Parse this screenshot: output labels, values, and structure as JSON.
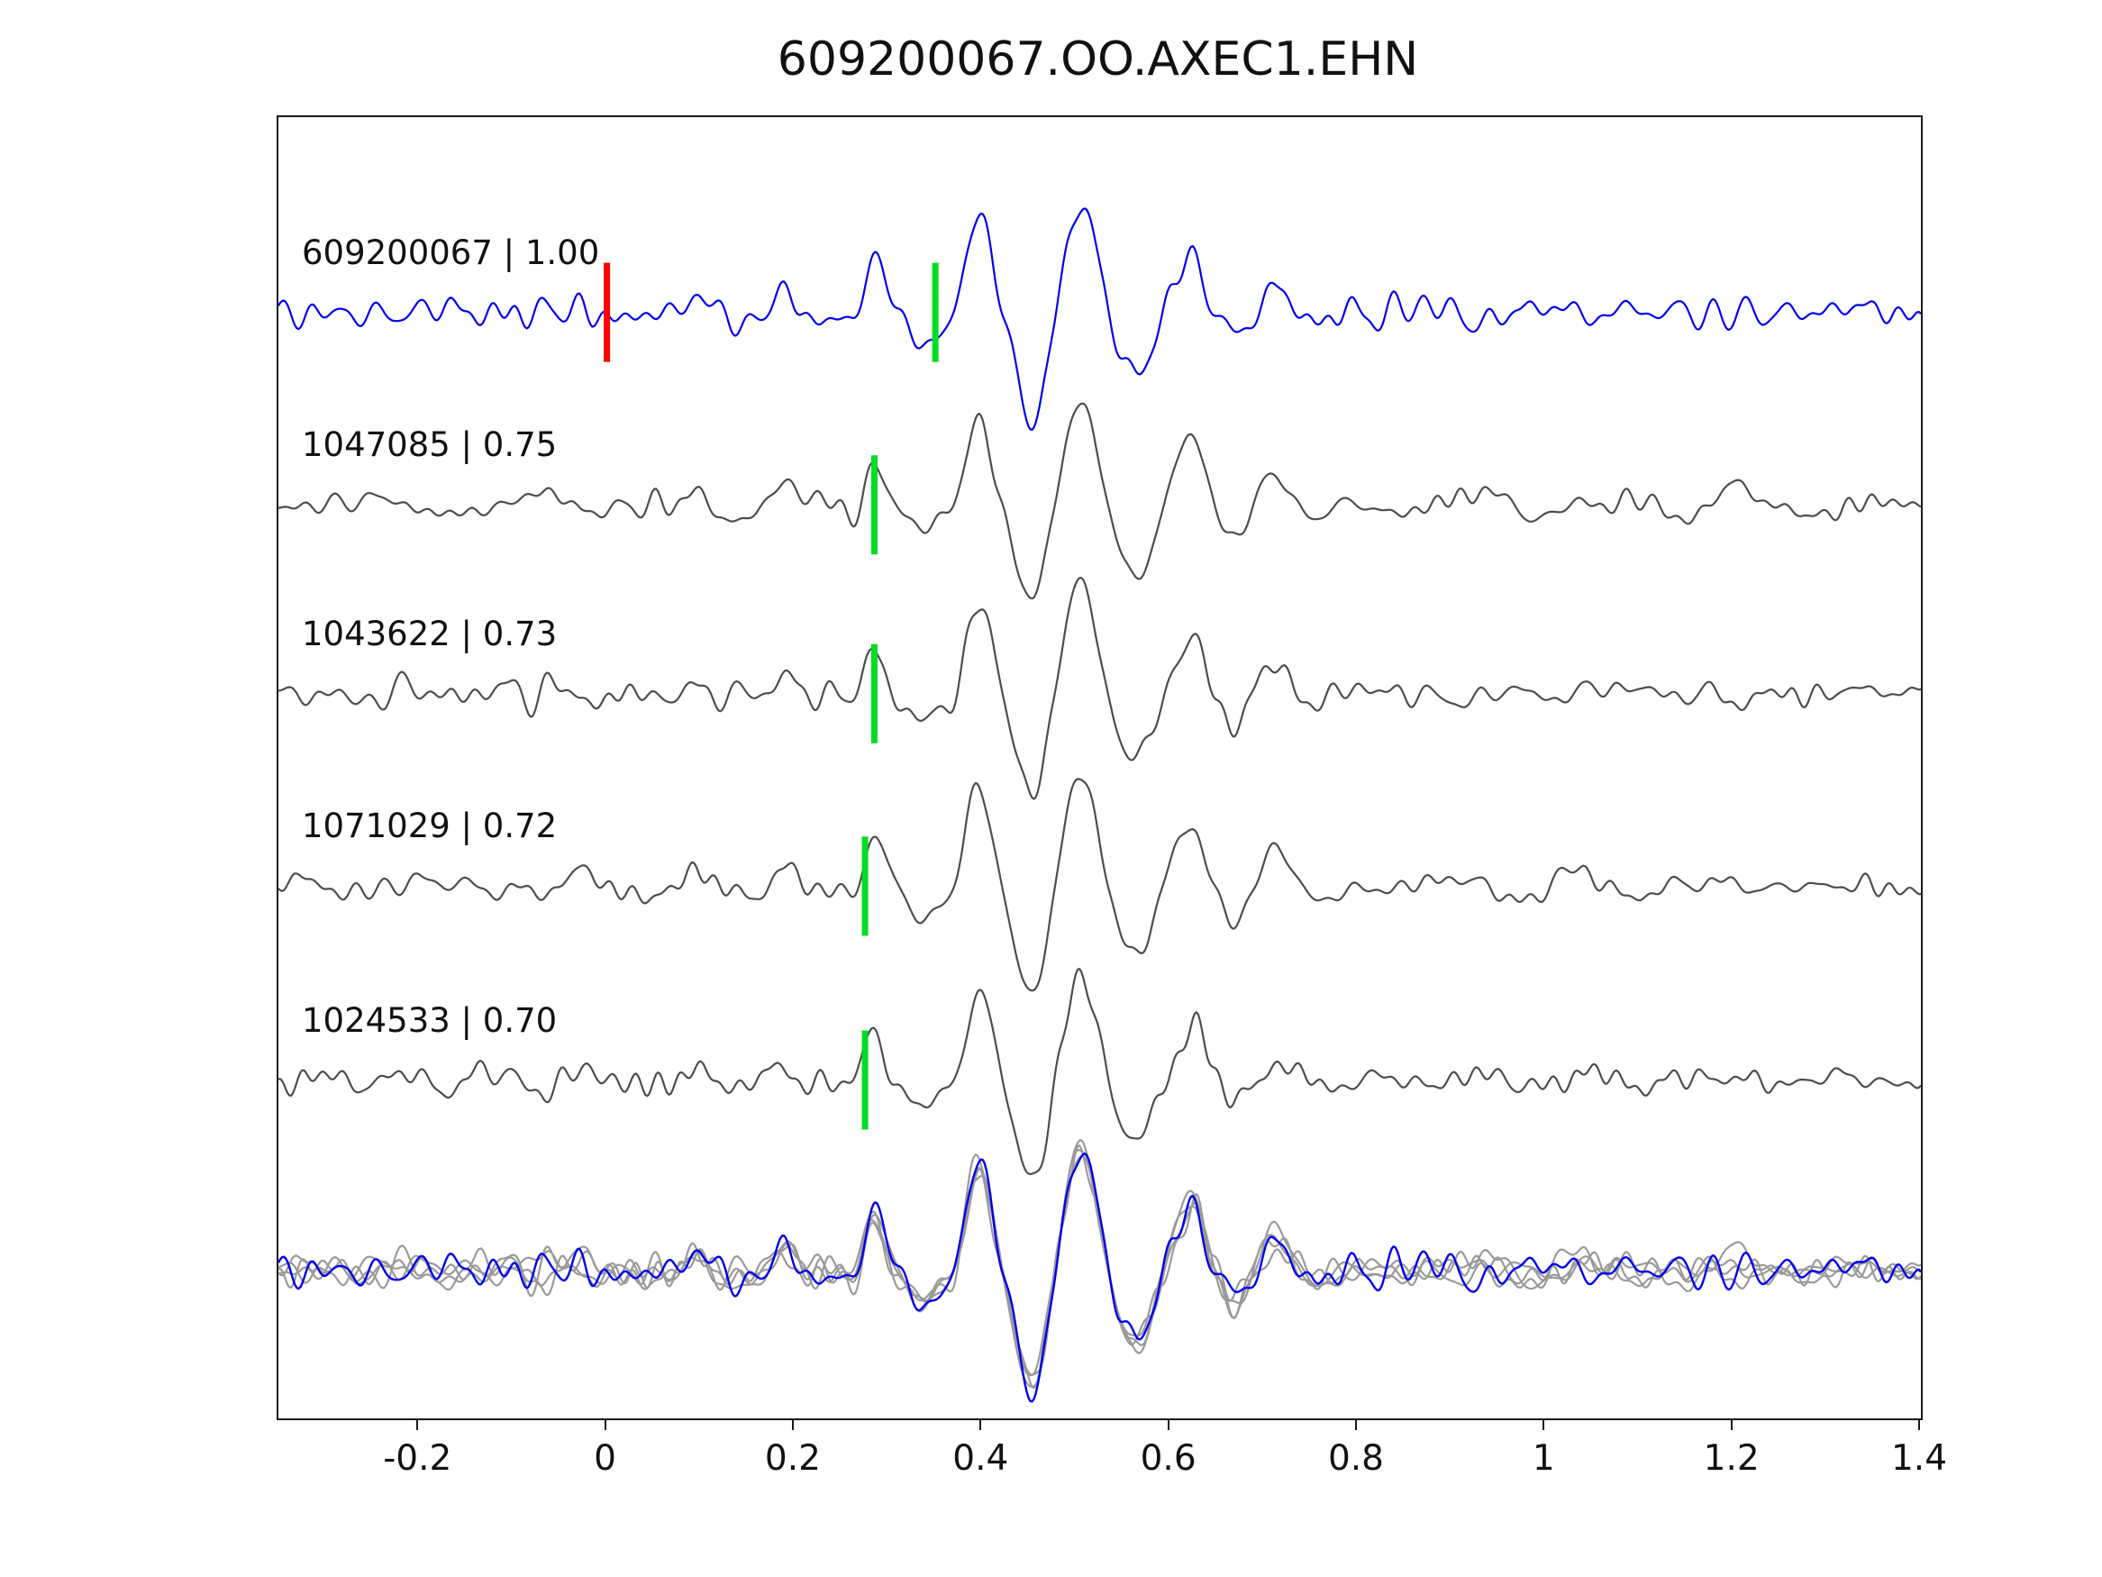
{
  "chart_data": {
    "type": "line",
    "title": "609200067.OO.AXEC1.EHN",
    "xlabel": "",
    "ylabel": "",
    "xlim": [
      -0.35,
      1.4
    ],
    "grid": false,
    "legend": "none",
    "xticks": [
      {
        "value": -0.2,
        "label": "-0.2"
      },
      {
        "value": 0,
        "label": "0"
      },
      {
        "value": 0.2,
        "label": "0.2"
      },
      {
        "value": 0.4,
        "label": "0.4"
      },
      {
        "value": 0.6,
        "label": "0.6"
      },
      {
        "value": 0.8,
        "label": "0.8"
      },
      {
        "value": 1,
        "label": "1"
      },
      {
        "value": 1.2,
        "label": "1.2"
      },
      {
        "value": 1.4,
        "label": "1.4"
      }
    ],
    "colors": {
      "target_trace": "#0000ee",
      "match_trace": "#4d4d4d",
      "overlay_gray": "#9a9a9a",
      "pick_green": "#00dd22",
      "pick_red": "#ff0000",
      "axis": "#1a1a1a"
    },
    "traces": [
      {
        "id": "609200067",
        "correlation": "1.00",
        "label": "609200067 | 1.00",
        "kind": "target",
        "row_frac": 0.15,
        "seed": 11,
        "gain": 1.0,
        "picks": [
          {
            "x": 0.0,
            "color": "red"
          },
          {
            "x": 0.35,
            "color": "green"
          }
        ]
      },
      {
        "id": "1047085",
        "correlation": "0.75",
        "label": "1047085 | 0.75",
        "kind": "match",
        "row_frac": 0.298,
        "seed": 23,
        "gain": 0.97,
        "picks": [
          {
            "x": 0.285,
            "color": "green"
          }
        ]
      },
      {
        "id": "1043622",
        "correlation": "0.73",
        "label": "1043622 | 0.73",
        "kind": "match",
        "row_frac": 0.443,
        "seed": 37,
        "gain": 0.95,
        "picks": [
          {
            "x": 0.285,
            "color": "green"
          }
        ]
      },
      {
        "id": "1071029",
        "correlation": "0.72",
        "label": "1071029 | 0.72",
        "kind": "match",
        "row_frac": 0.591,
        "seed": 51,
        "gain": 0.98,
        "picks": [
          {
            "x": 0.275,
            "color": "green"
          }
        ]
      },
      {
        "id": "1024533",
        "correlation": "0.70",
        "label": "1024533 | 0.70",
        "kind": "match",
        "row_frac": 0.74,
        "seed": 67,
        "gain": 0.93,
        "picks": [
          {
            "x": 0.275,
            "color": "green"
          }
        ]
      }
    ],
    "overlay": {
      "description": "all matched traces aligned and superimposed with target trace on top",
      "row_frac": 0.886,
      "gain": 1.12
    },
    "synthesis": {
      "samples": 900,
      "noise_amp": 0.085,
      "noise_components": 40,
      "wavelets": [
        {
          "c": 0.1,
          "a": 0.15,
          "f": 16,
          "s": 0.04
        },
        {
          "c": 0.19,
          "a": 0.25,
          "f": 14,
          "s": 0.03
        },
        {
          "c": 0.285,
          "a": 0.6,
          "f": 13,
          "s": 0.025
        },
        {
          "c": 0.335,
          "a": -0.3,
          "f": 12,
          "s": 0.03
        },
        {
          "c": 0.395,
          "a": 1.0,
          "f": 11,
          "s": 0.032
        },
        {
          "c": 0.45,
          "a": -0.95,
          "f": 10,
          "s": 0.035
        },
        {
          "c": 0.505,
          "a": 1.15,
          "f": 10,
          "s": 0.04
        },
        {
          "c": 0.565,
          "a": -0.5,
          "f": 10,
          "s": 0.045
        },
        {
          "c": 0.625,
          "a": 0.55,
          "f": 9,
          "s": 0.05
        },
        {
          "c": 0.71,
          "a": 0.3,
          "f": 9,
          "s": 0.055
        }
      ]
    }
  }
}
